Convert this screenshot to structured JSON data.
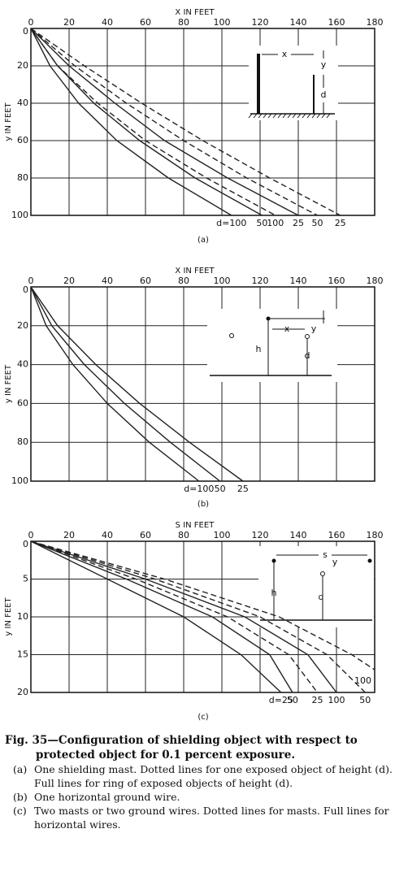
{
  "chart_data": [
    {
      "type": "line",
      "label": "(a)",
      "x_label": "X IN FEET",
      "y_label": "y IN FEET",
      "xlim": [
        0,
        180
      ],
      "xticks": [
        0,
        20,
        40,
        60,
        80,
        100,
        120,
        140,
        160,
        180
      ],
      "ylim": [
        0,
        100
      ],
      "yticks": [
        0,
        20,
        40,
        60,
        80,
        100
      ],
      "y_inverted": true,
      "grid": true,
      "inset_labels": [
        "x",
        "y",
        "d"
      ],
      "series": [
        {
          "name": "d=100",
          "color": "#222",
          "style": "solid",
          "x": [
            0,
            10,
            25,
            45,
            72,
            105
          ],
          "values": [
            0,
            20,
            40,
            60,
            80,
            100
          ]
        },
        {
          "name": "50",
          "color": "#222",
          "style": "solid",
          "x": [
            0,
            14,
            33,
            57,
            86,
            121
          ],
          "values": [
            0,
            20,
            40,
            60,
            80,
            100
          ]
        },
        {
          "name": "100",
          "color": "#222",
          "style": "dashed",
          "x": [
            0,
            14,
            35,
            60,
            92,
            128
          ],
          "values": [
            0,
            20,
            40,
            60,
            80,
            100
          ]
        },
        {
          "name": "25",
          "color": "#222",
          "style": "solid",
          "x": [
            0,
            20,
            44,
            70,
            103,
            140
          ],
          "values": [
            0,
            20,
            40,
            60,
            80,
            100
          ]
        },
        {
          "name": "50",
          "color": "#222",
          "style": "dashed",
          "x": [
            0,
            23,
            50,
            80,
            113,
            150
          ],
          "values": [
            0,
            20,
            40,
            60,
            80,
            100
          ]
        },
        {
          "name": "25",
          "color": "#222",
          "style": "dashed",
          "x": [
            0,
            28,
            58,
            90,
            125,
            162
          ],
          "values": [
            0,
            20,
            40,
            60,
            80,
            100
          ]
        }
      ]
    },
    {
      "type": "line",
      "label": "(b)",
      "x_label": "X IN FEET",
      "y_label": "y IN FEET",
      "xlim": [
        0,
        180
      ],
      "xticks": [
        0,
        20,
        40,
        60,
        80,
        100,
        120,
        140,
        160,
        180
      ],
      "ylim": [
        0,
        100
      ],
      "yticks": [
        0,
        20,
        40,
        60,
        80,
        100
      ],
      "y_inverted": true,
      "grid": true,
      "inset_labels": [
        "x",
        "y",
        "h",
        "d"
      ],
      "series": [
        {
          "name": "d=100",
          "color": "#222",
          "style": "solid",
          "x": [
            0,
            8,
            22,
            40,
            62,
            88
          ],
          "values": [
            0,
            20,
            40,
            60,
            80,
            100
          ]
        },
        {
          "name": "50",
          "color": "#222",
          "style": "solid",
          "x": [
            0,
            11,
            28,
            49,
            73,
            99
          ],
          "values": [
            0,
            20,
            40,
            60,
            80,
            100
          ]
        },
        {
          "name": "25",
          "color": "#222",
          "style": "solid",
          "x": [
            0,
            14,
            34,
            57,
            83,
            111
          ],
          "values": [
            0,
            20,
            40,
            60,
            80,
            100
          ]
        }
      ]
    },
    {
      "type": "line",
      "label": "(c)",
      "x_label": "S IN FEET",
      "y_label": "y IN FEET",
      "xlim": [
        0,
        180
      ],
      "xticks": [
        0,
        20,
        40,
        60,
        80,
        100,
        120,
        140,
        160,
        180
      ],
      "ylim": [
        0,
        20
      ],
      "yticks": [
        0,
        5,
        10,
        15,
        20
      ],
      "y_inverted": true,
      "grid": true,
      "inset_labels": [
        "s",
        "y",
        "h",
        "d"
      ],
      "series": [
        {
          "name": "d=25",
          "color": "#222",
          "style": "solid",
          "x": [
            0,
            40,
            80,
            110,
            131
          ],
          "values": [
            0,
            5,
            10,
            15,
            20
          ]
        },
        {
          "name": "50",
          "color": "#222",
          "style": "solid",
          "x": [
            0,
            50,
            95,
            125,
            137
          ],
          "values": [
            0,
            5,
            10,
            15,
            20
          ]
        },
        {
          "name": "25",
          "color": "#222",
          "style": "dashed",
          "x": [
            0,
            55,
            103,
            135,
            150
          ],
          "values": [
            0,
            5,
            10,
            15,
            20
          ]
        },
        {
          "name": "100",
          "color": "#222",
          "style": "solid",
          "x": [
            0,
            60,
            112,
            145,
            160
          ],
          "values": [
            0,
            5,
            10,
            15,
            20
          ]
        },
        {
          "name": "50",
          "color": "#222",
          "style": "dashed",
          "x": [
            0,
            65,
            120,
            155,
            175
          ],
          "values": [
            0,
            5,
            10,
            15,
            20
          ]
        },
        {
          "name": "100",
          "color": "#222",
          "style": "dashed",
          "x": [
            0,
            70,
            130,
            168,
            180
          ],
          "values": [
            0,
            5,
            10,
            15,
            17
          ]
        }
      ]
    }
  ],
  "caption": {
    "title": "Fig. 35—Configuration of shielding object with respect to protected object for 0.1 percent exposure.",
    "items": [
      {
        "label": "(a)",
        "text": "One shielding mast. Dotted lines for one exposed object of height (d). Full lines for ring of exposed objects of height (d)."
      },
      {
        "label": "(b)",
        "text": "One horizontal ground wire."
      },
      {
        "label": "(c)",
        "text": "Two masts or two ground wires. Dotted lines for masts. Full lines for horizontal wires."
      }
    ]
  }
}
